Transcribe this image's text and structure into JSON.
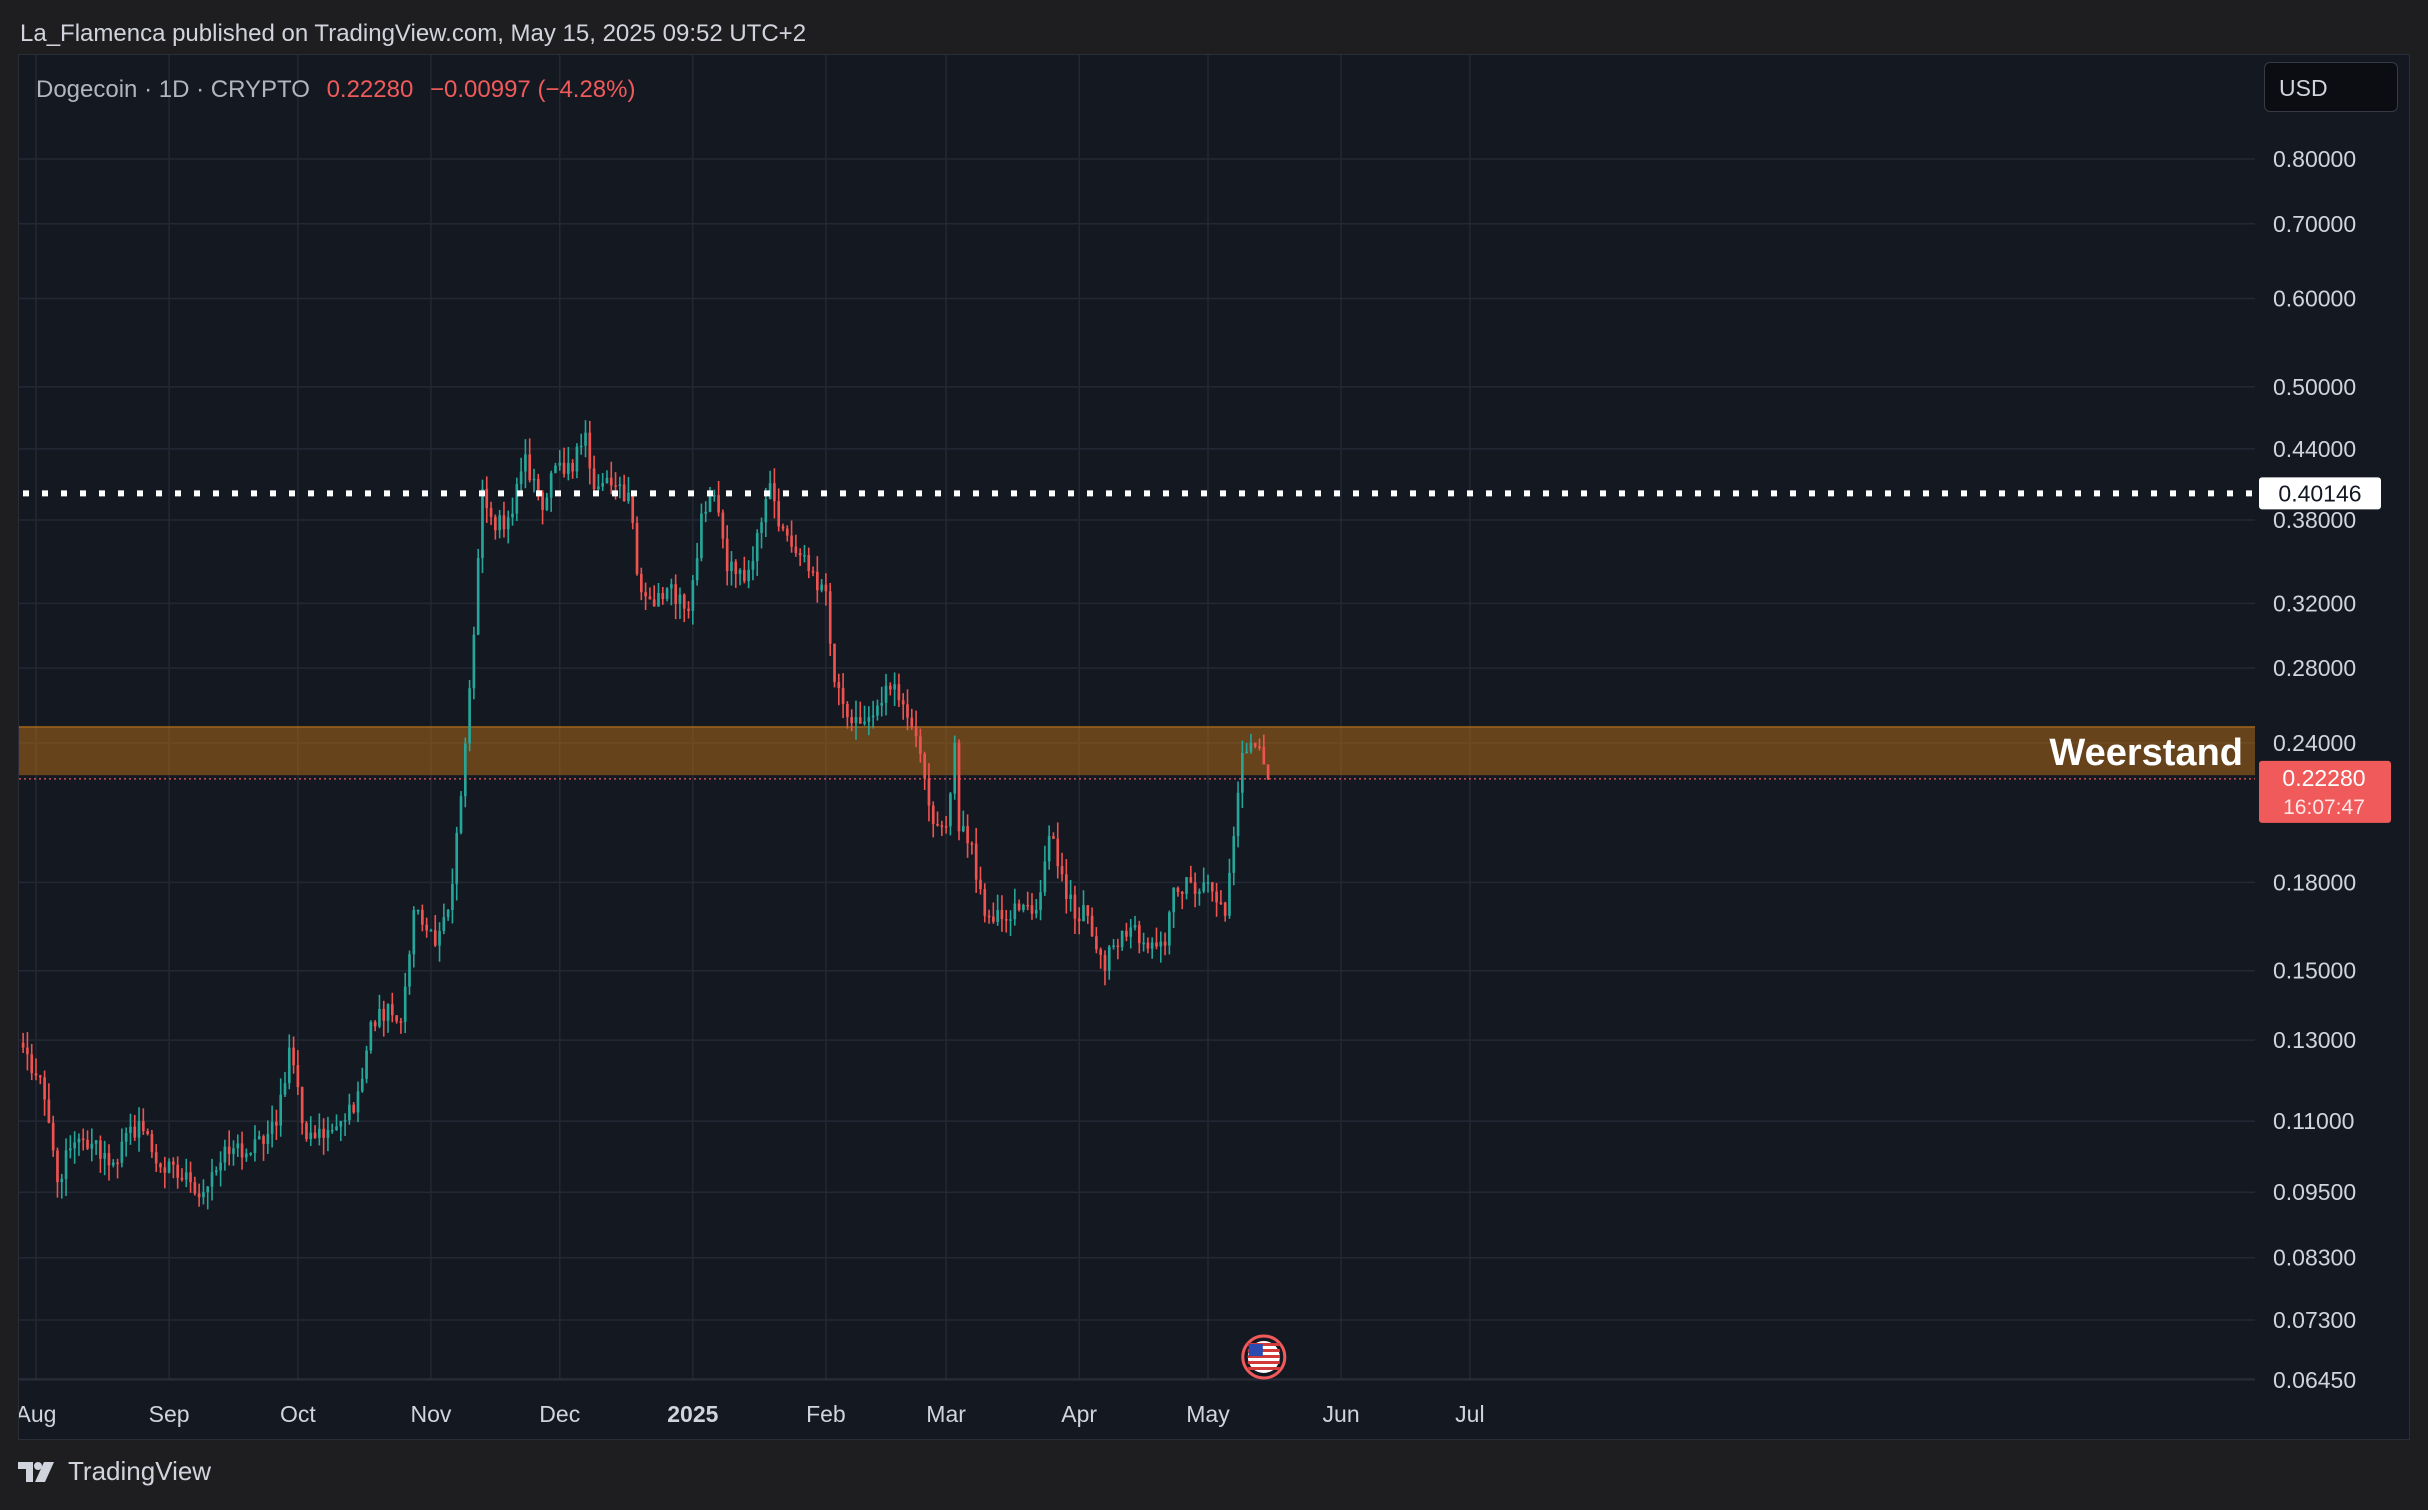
{
  "publish": "La_Flamenca published on TradingView.com, May 15, 2025 09:52 UTC+2",
  "legend": {
    "symbol": "Dogecoin · 1D · CRYPTO",
    "last": "0.22280",
    "change": "−0.00997 (−4.28%)"
  },
  "currency": "USD",
  "brand": "TradingView",
  "colors": {
    "up": "#26a69a",
    "down": "#ef5350",
    "background": "#141821",
    "resistance_zone": "#b86e14",
    "last_price_label": "#f05a5a"
  },
  "icons": [
    "tradingview-logo-icon",
    "us-flag-event-icon"
  ],
  "chart_data": {
    "type": "candlestick",
    "symbol": "Dogecoin",
    "interval": "1D",
    "y_scale": "log",
    "y_ticks": [
      "0.80000",
      "0.70000",
      "0.60000",
      "0.50000",
      "0.44000",
      "0.38000",
      "0.32000",
      "0.28000",
      "0.24000",
      "0.18000",
      "0.15000",
      "0.13000",
      "0.11000",
      "0.09500",
      "0.08300",
      "0.07300",
      "0.06450"
    ],
    "x_ticks": [
      "Aug",
      "Sep",
      "Oct",
      "Nov",
      "Dec",
      "2025",
      "Feb",
      "Mar",
      "Apr",
      "May",
      "Jun",
      "Jul"
    ],
    "x_tick_dates": [
      "2024-08-01",
      "2024-09-01",
      "2024-10-01",
      "2024-11-01",
      "2024-12-01",
      "2025-01-01",
      "2025-02-01",
      "2025-03-01",
      "2025-04-01",
      "2025-05-01",
      "2025-06-01",
      "2025-07-01"
    ],
    "grid": true,
    "horizontal_line": {
      "style": "dotted",
      "value": 0.40146,
      "label": "0.40146"
    },
    "zone": {
      "label": "Weerstand",
      "low": 0.2245,
      "high": 0.248
    },
    "last_price": {
      "value": "0.22280",
      "countdown": "16:07:47"
    },
    "price_anchors": [
      [
        "2024-07-29",
        0.128
      ],
      [
        "2024-08-03",
        0.115
      ],
      [
        "2024-08-06",
        0.097
      ],
      [
        "2024-08-09",
        0.104
      ],
      [
        "2024-08-14",
        0.105
      ],
      [
        "2024-08-19",
        0.101
      ],
      [
        "2024-08-25",
        0.11
      ],
      [
        "2024-08-30",
        0.1
      ],
      [
        "2024-09-06",
        0.097
      ],
      [
        "2024-09-09",
        0.095
      ],
      [
        "2024-09-11",
        0.099
      ],
      [
        "2024-09-16",
        0.104
      ],
      [
        "2024-09-20",
        0.103
      ],
      [
        "2024-09-26",
        0.109
      ],
      [
        "2024-09-29",
        0.128
      ],
      [
        "2024-10-01",
        0.118
      ],
      [
        "2024-10-03",
        0.106
      ],
      [
        "2024-10-08",
        0.108
      ],
      [
        "2024-10-11",
        0.11
      ],
      [
        "2024-10-14",
        0.112
      ],
      [
        "2024-10-18",
        0.135
      ],
      [
        "2024-10-22",
        0.14
      ],
      [
        "2024-10-25",
        0.135
      ],
      [
        "2024-10-28",
        0.17
      ],
      [
        "2024-11-02",
        0.158
      ],
      [
        "2024-11-05",
        0.17
      ],
      [
        "2024-11-08",
        0.215
      ],
      [
        "2024-11-11",
        0.3
      ],
      [
        "2024-11-13",
        0.405
      ],
      [
        "2024-11-16",
        0.372
      ],
      [
        "2024-11-20",
        0.385
      ],
      [
        "2024-11-23",
        0.435
      ],
      [
        "2024-11-27",
        0.388
      ],
      [
        "2024-11-30",
        0.425
      ],
      [
        "2024-12-04",
        0.42
      ],
      [
        "2024-12-07",
        0.455
      ],
      [
        "2024-12-09",
        0.405
      ],
      [
        "2024-12-13",
        0.408
      ],
      [
        "2024-12-17",
        0.402
      ],
      [
        "2024-12-19",
        0.34
      ],
      [
        "2024-12-23",
        0.318
      ],
      [
        "2024-12-26",
        0.33
      ],
      [
        "2024-12-31",
        0.315
      ],
      [
        "2025-01-03",
        0.385
      ],
      [
        "2025-01-06",
        0.4
      ],
      [
        "2025-01-09",
        0.342
      ],
      [
        "2025-01-13",
        0.335
      ],
      [
        "2025-01-16",
        0.37
      ],
      [
        "2025-01-19",
        0.41
      ],
      [
        "2025-01-21",
        0.375
      ],
      [
        "2025-01-25",
        0.355
      ],
      [
        "2025-01-28",
        0.342
      ],
      [
        "2025-02-01",
        0.328
      ],
      [
        "2025-02-03",
        0.272
      ],
      [
        "2025-02-07",
        0.25
      ],
      [
        "2025-02-11",
        0.253
      ],
      [
        "2025-02-15",
        0.27
      ],
      [
        "2025-02-18",
        0.262
      ],
      [
        "2025-02-21",
        0.248
      ],
      [
        "2025-02-24",
        0.223
      ],
      [
        "2025-02-26",
        0.203
      ],
      [
        "2025-03-01",
        0.202
      ],
      [
        "2025-03-03",
        0.24
      ],
      [
        "2025-03-04",
        0.2
      ],
      [
        "2025-03-07",
        0.195
      ],
      [
        "2025-03-10",
        0.168
      ],
      [
        "2025-03-13",
        0.17
      ],
      [
        "2025-03-18",
        0.17
      ],
      [
        "2025-03-22",
        0.17
      ],
      [
        "2025-03-25",
        0.198
      ],
      [
        "2025-03-28",
        0.183
      ],
      [
        "2025-03-31",
        0.167
      ],
      [
        "2025-04-03",
        0.168
      ],
      [
        "2025-04-07",
        0.15
      ],
      [
        "2025-04-09",
        0.158
      ],
      [
        "2025-04-13",
        0.164
      ],
      [
        "2025-04-17",
        0.157
      ],
      [
        "2025-04-21",
        0.158
      ],
      [
        "2025-04-23",
        0.178
      ],
      [
        "2025-04-27",
        0.18
      ],
      [
        "2025-05-01",
        0.18
      ],
      [
        "2025-05-05",
        0.168
      ],
      [
        "2025-05-07",
        0.198
      ],
      [
        "2025-05-09",
        0.235
      ],
      [
        "2025-05-11",
        0.24
      ],
      [
        "2025-05-13",
        0.238
      ],
      [
        "2025-05-15",
        0.2228
      ]
    ],
    "events": [
      {
        "date": "2025-05-14",
        "label": "US economic event"
      }
    ]
  }
}
